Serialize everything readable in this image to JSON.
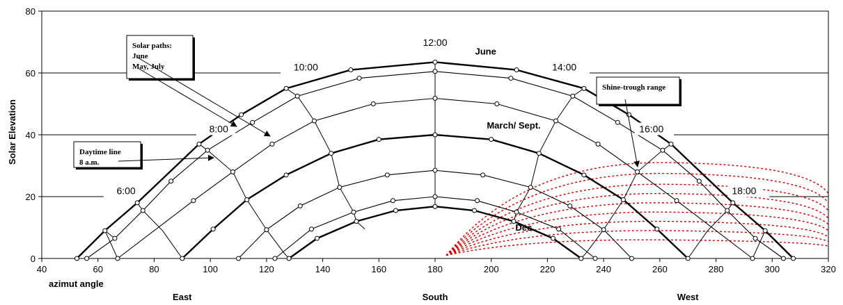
{
  "chart_data": {
    "type": "line",
    "title": "",
    "xlabel": "azimut angle",
    "ylabel": "Solar Elevation",
    "xlim": [
      40,
      320
    ],
    "ylim": [
      0,
      80
    ],
    "xticks": [
      40,
      60,
      80,
      100,
      120,
      140,
      160,
      180,
      200,
      220,
      240,
      260,
      280,
      300,
      320
    ],
    "yticks": [
      0,
      20,
      40,
      60,
      80
    ],
    "direction_labels": [
      {
        "text": "East",
        "x": 90
      },
      {
        "text": "South",
        "x": 180
      },
      {
        "text": "West",
        "x": 270
      }
    ],
    "series": [
      {
        "name": "June",
        "bold": true,
        "points": [
          [
            52.5,
            0
          ],
          [
            62.5,
            9
          ],
          [
            74,
            18
          ],
          [
            96,
            37
          ],
          [
            111,
            46.5
          ],
          [
            127,
            55
          ],
          [
            150,
            61
          ],
          [
            180,
            63.5
          ],
          [
            209,
            61
          ],
          [
            233,
            55
          ],
          [
            249,
            46.5
          ],
          [
            264,
            37
          ],
          [
            286,
            18
          ],
          [
            297.5,
            9
          ],
          [
            307.5,
            0
          ]
        ]
      },
      {
        "name": "May, July",
        "bold": false,
        "points": [
          [
            56,
            0
          ],
          [
            66,
            6.5
          ],
          [
            76,
            15.5
          ],
          [
            86,
            25
          ],
          [
            99,
            35
          ],
          [
            115,
            44
          ],
          [
            131,
            52.5
          ],
          [
            153,
            58.3
          ],
          [
            180,
            60.5
          ],
          [
            207,
            58.3
          ],
          [
            229,
            52.5
          ],
          [
            245,
            44
          ],
          [
            261,
            35
          ],
          [
            274,
            25
          ],
          [
            284,
            15.5
          ],
          [
            294,
            6.5
          ],
          [
            304,
            0
          ]
        ]
      },
      {
        "name": "",
        "bold": false,
        "points": [
          [
            67,
            0
          ],
          [
            94,
            18.7
          ],
          [
            108,
            28
          ],
          [
            122,
            37
          ],
          [
            137,
            44.5
          ],
          [
            158,
            50
          ],
          [
            180,
            51.8
          ],
          [
            202,
            50
          ],
          [
            223,
            44.5
          ],
          [
            238,
            37
          ],
          [
            252,
            28
          ],
          [
            266,
            18.7
          ],
          [
            293,
            0
          ]
        ]
      },
      {
        "name": "March/ Sept.",
        "bold": true,
        "points": [
          [
            90,
            0
          ],
          [
            101,
            9.5
          ],
          [
            113,
            19
          ],
          [
            127,
            27
          ],
          [
            143,
            34
          ],
          [
            160,
            38.5
          ],
          [
            180,
            40
          ],
          [
            200,
            38.5
          ],
          [
            217,
            34
          ],
          [
            233,
            27
          ],
          [
            247,
            19
          ],
          [
            259,
            9.5
          ],
          [
            270,
            0
          ]
        ]
      },
      {
        "name": "",
        "bold": false,
        "points": [
          [
            110,
            0
          ],
          [
            120,
            9.3
          ],
          [
            132,
            17
          ],
          [
            146,
            23
          ],
          [
            163,
            27
          ],
          [
            180,
            28.5
          ],
          [
            197,
            27
          ],
          [
            214,
            23
          ],
          [
            228,
            17
          ],
          [
            240,
            9.3
          ],
          [
            250,
            0
          ]
        ]
      },
      {
        "name": "",
        "bold": false,
        "points": [
          [
            123,
            0
          ],
          [
            136,
            9.5
          ],
          [
            151,
            15
          ],
          [
            165,
            18.7
          ],
          [
            180,
            20
          ],
          [
            195,
            18.7
          ],
          [
            209,
            15
          ],
          [
            224,
            9.5
          ],
          [
            237,
            0
          ]
        ]
      },
      {
        "name": "Dec.",
        "bold": true,
        "points": [
          [
            128,
            0
          ],
          [
            138,
            6.5
          ],
          [
            152,
            12
          ],
          [
            166,
            15.5
          ],
          [
            180,
            16.8
          ],
          [
            194,
            15.5
          ],
          [
            208,
            12
          ],
          [
            222,
            6.5
          ],
          [
            232,
            0
          ]
        ]
      }
    ],
    "hour_lines": [
      {
        "points": [
          [
            52.5,
            0
          ],
          [
            56,
            0
          ],
          [
            67,
            0
          ],
          [
            90,
            0
          ]
        ]
      },
      {
        "points": [
          [
            62.5,
            9
          ],
          [
            66,
            6.5
          ]
        ]
      },
      {
        "points": [
          [
            96,
            37
          ],
          [
            99,
            35
          ],
          [
            108,
            28
          ],
          [
            113,
            19
          ],
          [
            120,
            9.3
          ],
          [
            126,
            2
          ],
          [
            128,
            0
          ]
        ]
      },
      {
        "points": [
          [
            74,
            18
          ],
          [
            76,
            15.5
          ],
          [
            83,
            9
          ],
          [
            90,
            0
          ]
        ]
      },
      {
        "points": [
          [
            127,
            55
          ],
          [
            131,
            52.5
          ],
          [
            137,
            44.5
          ],
          [
            143,
            34
          ],
          [
            146,
            23
          ],
          [
            151,
            15
          ],
          [
            152,
            12
          ],
          [
            155,
            9.5
          ]
        ]
      },
      {
        "points": [
          [
            180,
            63.5
          ],
          [
            180,
            60.5
          ],
          [
            180,
            51.8
          ],
          [
            180,
            40
          ],
          [
            180,
            28.5
          ],
          [
            180,
            20
          ],
          [
            180,
            16.8
          ]
        ]
      },
      {
        "points": [
          [
            233,
            55
          ],
          [
            229,
            52.5
          ],
          [
            223,
            44.5
          ],
          [
            217,
            34
          ],
          [
            214,
            23
          ],
          [
            209,
            15
          ],
          [
            208,
            12
          ]
        ]
      },
      {
        "points": [
          [
            264,
            37
          ],
          [
            261,
            35
          ],
          [
            252,
            28
          ],
          [
            247,
            19
          ],
          [
            240,
            9.3
          ],
          [
            234,
            2
          ],
          [
            232,
            0
          ]
        ]
      },
      {
        "points": [
          [
            286,
            18
          ],
          [
            284,
            15.5
          ],
          [
            277,
            9
          ],
          [
            270,
            0
          ]
        ]
      },
      {
        "points": [
          [
            307.5,
            0
          ],
          [
            304,
            0
          ],
          [
            293,
            0
          ],
          [
            270,
            0
          ]
        ]
      },
      {
        "points": [
          [
            62.5,
            9
          ],
          [
            67,
            0
          ]
        ]
      },
      {
        "points": [
          [
            297.5,
            9
          ],
          [
            293,
            0
          ]
        ]
      }
    ],
    "hour_labels": [
      {
        "text": "6:00",
        "x": 70,
        "y": 21
      },
      {
        "text": "8:00",
        "x": 103,
        "y": 41
      },
      {
        "text": "10:00",
        "x": 134,
        "y": 61
      },
      {
        "text": "12:00",
        "x": 180,
        "y": 69
      },
      {
        "text": "14:00",
        "x": 226,
        "y": 61
      },
      {
        "text": "16:00",
        "x": 257,
        "y": 41
      },
      {
        "text": "18:00",
        "x": 290,
        "y": 21
      }
    ],
    "hour_label_lines": [
      {
        "y": 20,
        "x_from": 40,
        "x_to": 62
      },
      {
        "y": 20,
        "x_to": 320,
        "x_from": 299
      },
      {
        "y": 40,
        "x_from": 40,
        "x_to": 95
      },
      {
        "y": 40,
        "x_from": 265,
        "x_to": 320
      },
      {
        "y": 60,
        "x_from": 40,
        "x_to": 125
      },
      {
        "y": 60,
        "x_from": 235,
        "x_to": 320
      }
    ],
    "shine_through": {
      "color": "#cc0000",
      "apex": [
        184,
        1
      ],
      "arcs": [
        {
          "end": [
            320,
            21
          ],
          "peak": [
            262,
            31
          ]
        },
        {
          "end": [
            320,
            18
          ],
          "peak": [
            262,
            27.5
          ]
        },
        {
          "end": [
            320,
            15.5
          ],
          "peak": [
            262,
            24
          ]
        },
        {
          "end": [
            320,
            13
          ],
          "peak": [
            262,
            21
          ]
        },
        {
          "end": [
            320,
            11
          ],
          "peak": [
            262,
            18
          ]
        },
        {
          "end": [
            320,
            9
          ],
          "peak": [
            262,
            15
          ]
        },
        {
          "end": [
            320,
            7
          ],
          "peak": [
            262,
            12
          ]
        },
        {
          "end": [
            320,
            5.5
          ],
          "peak": [
            262,
            9
          ]
        },
        {
          "end": [
            320,
            4
          ],
          "peak": [
            262,
            6
          ]
        }
      ]
    },
    "annotations": [
      {
        "lines": [
          "Solar paths:",
          "June",
          "May, July"
        ]
      },
      {
        "lines": [
          "Daytime line",
          "8 a.m."
        ]
      },
      {
        "lines": [
          "Shine-trough range"
        ]
      }
    ],
    "curve_labels": [
      {
        "text": "June",
        "x": 198,
        "y": 66
      },
      {
        "text": "March/ Sept.",
        "x": 208,
        "y": 42
      },
      {
        "text": "Dec.",
        "x": 212,
        "y": 9
      }
    ]
  }
}
